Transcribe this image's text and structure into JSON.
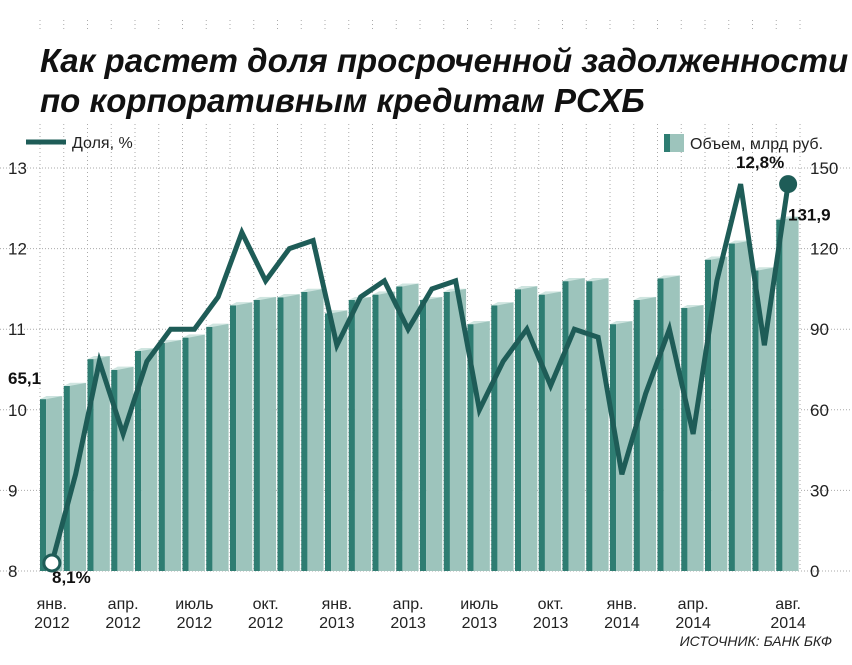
{
  "title_line1": "Как растет доля просроченной задолженности",
  "title_line2": "по корпоративным кредитам РСХБ",
  "legend": {
    "line_label": "Доля, %",
    "bar_label": "Объем, млрд руб."
  },
  "source": "ИСТОЧНИК: БАНК БКФ",
  "colors": {
    "line": "#1e5c57",
    "bar_front": "#9dc4bc",
    "bar_side": "#2e7d72",
    "bar_top": "#cfe5e0",
    "grid": "#aaaaaa",
    "background": "#ffffff"
  },
  "chart_data": {
    "type": "bar+line",
    "x_labels": [
      {
        "index": 0,
        "month": "янв.",
        "year": "2012"
      },
      {
        "index": 3,
        "month": "апр.",
        "year": "2012"
      },
      {
        "index": 6,
        "month": "июль",
        "year": "2012"
      },
      {
        "index": 9,
        "month": "окт.",
        "year": "2012"
      },
      {
        "index": 12,
        "month": "янв.",
        "year": "2013"
      },
      {
        "index": 15,
        "month": "апр.",
        "year": "2013"
      },
      {
        "index": 18,
        "month": "июль",
        "year": "2013"
      },
      {
        "index": 21,
        "month": "окт.",
        "year": "2013"
      },
      {
        "index": 24,
        "month": "янв.",
        "year": "2014"
      },
      {
        "index": 27,
        "month": "апр.",
        "year": "2014"
      },
      {
        "index": 31,
        "month": "авг.",
        "year": "2014"
      }
    ],
    "left_axis": {
      "label": "Доля, %",
      "min": 8,
      "max": 13,
      "ticks": [
        8,
        9,
        10,
        11,
        12,
        13
      ]
    },
    "right_axis": {
      "label": "Объем, млрд руб.",
      "min": 0,
      "max": 150,
      "ticks": [
        0,
        30,
        60,
        90,
        120,
        150
      ]
    },
    "grid": true,
    "series": [
      {
        "name": "Объем, млрд руб.",
        "kind": "bar",
        "axis": "right",
        "values": [
          65.1,
          70,
          80,
          76,
          83,
          86,
          88,
          92,
          100,
          102,
          103,
          105,
          97,
          102,
          104,
          107,
          102,
          105,
          93,
          100,
          106,
          104,
          109,
          109,
          93,
          102,
          110,
          99,
          117,
          123,
          113,
          131.9
        ]
      },
      {
        "name": "Доля, %",
        "kind": "line",
        "axis": "left",
        "values": [
          8.1,
          9.2,
          10.6,
          9.7,
          10.6,
          11.0,
          11.0,
          11.4,
          12.2,
          11.6,
          12.0,
          12.1,
          10.8,
          11.4,
          11.6,
          11.0,
          11.5,
          11.6,
          10.0,
          10.6,
          11.0,
          10.3,
          11.0,
          10.9,
          9.2,
          10.2,
          11.0,
          9.7,
          11.6,
          12.8,
          10.8,
          12.8
        ]
      }
    ],
    "annotations": [
      {
        "series": "Объем, млрд руб.",
        "index": 0,
        "text": "65,1"
      },
      {
        "series": "Объем, млрд руб.",
        "index": 31,
        "text": "131,9"
      },
      {
        "series": "Доля, %",
        "index": 0,
        "text": "8,1%"
      },
      {
        "series": "Доля, %",
        "index": 31,
        "text": "12,8%"
      }
    ]
  }
}
